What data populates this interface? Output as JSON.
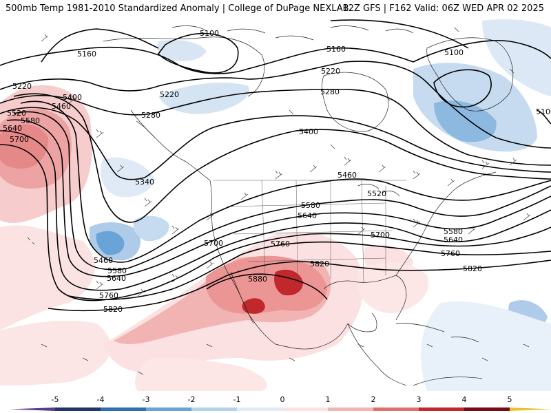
{
  "header": {
    "left_title": "500mb Temp 1981-2010 Standardized Anomaly | College of DuPage NEXLAB",
    "right_title": "12Z GFS | F162 Valid: 06Z WED APR 02 2025"
  },
  "contours": {
    "labels": [
      "5100",
      "5160",
      "5220",
      "5280",
      "5340",
      "5400",
      "5460",
      "5520",
      "5580",
      "5640",
      "5700",
      "5760",
      "5820",
      "5880"
    ]
  },
  "colorbar": {
    "ticks": [
      "-5",
      "-4",
      "-3",
      "-2",
      "-1",
      "0",
      "1",
      "2",
      "3",
      "4",
      "5"
    ],
    "colors": [
      "#5a3a8a",
      "#23346b",
      "#2f6fb2",
      "#6aa3d6",
      "#b6d1ec",
      "#e2ecf7",
      "#fbe1e1",
      "#f2b3b3",
      "#e07070",
      "#c0282c",
      "#7a0b14",
      "#e8c22a"
    ]
  }
}
